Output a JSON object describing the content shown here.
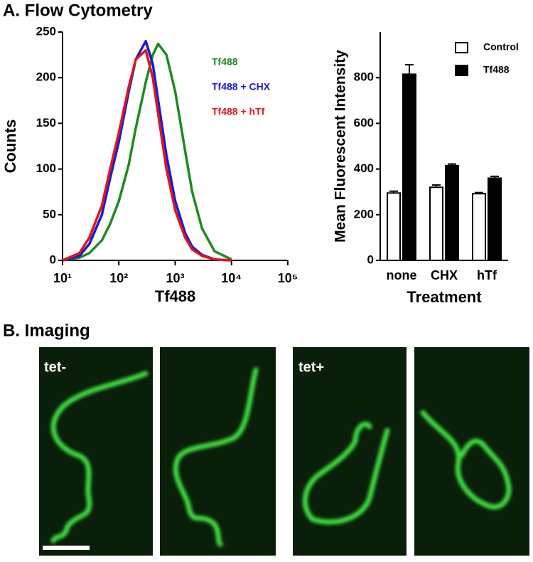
{
  "panel_a": {
    "title": "A. Flow Cytometry"
  },
  "panel_b": {
    "title": "B. Imaging",
    "labels": [
      "tet-",
      "tet+"
    ]
  },
  "chart_data": [
    {
      "type": "line",
      "xscale": "log",
      "ylabel": "Counts",
      "xlabel": "Tf488",
      "x": [
        10,
        20,
        30,
        50,
        70,
        100,
        150,
        200,
        300,
        400,
        500,
        700,
        1000,
        1500,
        2000,
        3000,
        5000,
        10000
      ],
      "xlim": [
        10,
        100000
      ],
      "xticks": [
        {
          "value": 10,
          "label": "10¹"
        },
        {
          "value": 100,
          "label": "10²"
        },
        {
          "value": 1000,
          "label": "10³"
        },
        {
          "value": 10000,
          "label": "10⁴"
        },
        {
          "value": 100000,
          "label": "10⁵"
        }
      ],
      "ylim": [
        0,
        250
      ],
      "yticks": [
        0,
        50,
        100,
        150,
        200,
        250
      ],
      "series": [
        {
          "name": "Tf488",
          "color": "#1f8a1f",
          "values": [
            0,
            3,
            8,
            22,
            40,
            65,
            105,
            145,
            195,
            225,
            237,
            225,
            185,
            120,
            75,
            35,
            10,
            1
          ]
        },
        {
          "name": "Tf488 + CHX",
          "color": "#1a1ad6",
          "values": [
            0,
            5,
            18,
            50,
            90,
            130,
            185,
            220,
            240,
            215,
            175,
            115,
            65,
            30,
            15,
            6,
            1,
            0
          ]
        },
        {
          "name": "Tf488 + hTf",
          "color": "#e0161c",
          "values": [
            0,
            8,
            25,
            60,
            100,
            140,
            190,
            220,
            230,
            200,
            160,
            100,
            55,
            25,
            12,
            5,
            1,
            0
          ]
        }
      ]
    },
    {
      "type": "bar",
      "ylabel": "Mean Fluorescent Intensity",
      "xlabel": "Treatment",
      "categories": [
        "none",
        "CHX",
        "hTf"
      ],
      "ylim": [
        0,
        1000
      ],
      "yticks": [
        0,
        200,
        400,
        600,
        800
      ],
      "series": [
        {
          "name": "Control",
          "color": "#ffffff",
          "values": [
            295,
            320,
            292
          ],
          "errors": [
            8,
            10,
            5
          ]
        },
        {
          "name": "Tf488",
          "color": "#000000",
          "values": [
            815,
            415,
            360
          ],
          "errors": [
            42,
            7,
            8
          ]
        }
      ]
    }
  ]
}
